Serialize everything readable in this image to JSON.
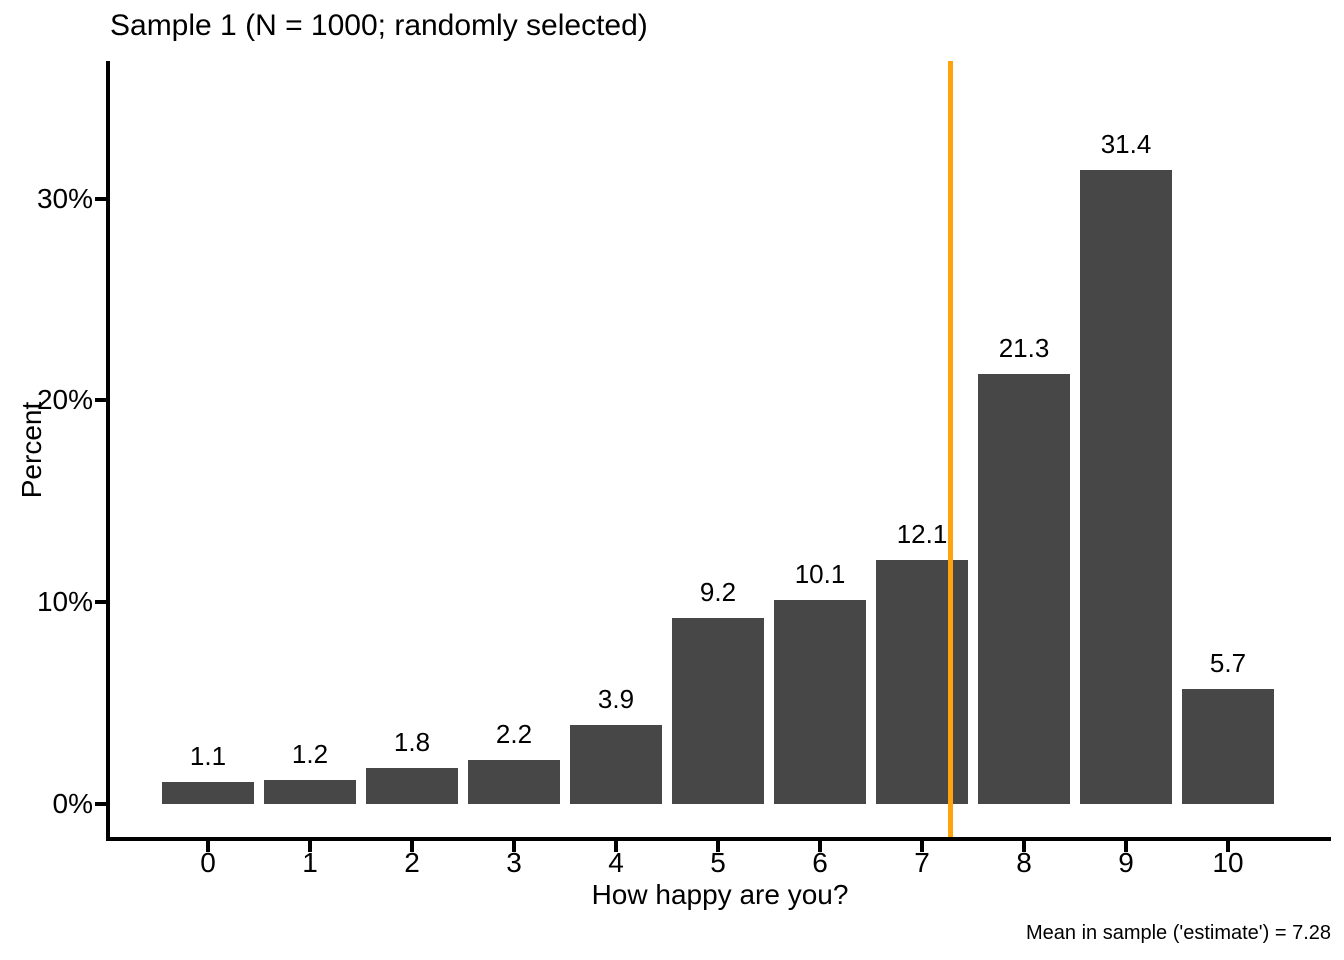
{
  "chart_data": {
    "type": "bar",
    "title": "Sample 1 (N = 1000; randomly selected)",
    "categories": [
      "0",
      "1",
      "2",
      "3",
      "4",
      "5",
      "6",
      "7",
      "8",
      "9",
      "10"
    ],
    "values": [
      1.1,
      1.2,
      1.8,
      2.2,
      3.9,
      9.2,
      10.1,
      12.1,
      21.3,
      31.4,
      5.7
    ],
    "bar_labels": [
      "1.1",
      "1.2",
      "1.8",
      "2.2",
      "3.9",
      "9.2",
      "10.1",
      "12.1",
      "21.3",
      "31.4",
      "5.7"
    ],
    "xlabel": "How happy are you?",
    "ylabel": "Percent",
    "y_ticks": [
      {
        "value": 0,
        "label": "0%"
      },
      {
        "value": 10,
        "label": "10%"
      },
      {
        "value": 20,
        "label": "20%"
      },
      {
        "value": 30,
        "label": "30%"
      }
    ],
    "ylim": [
      0,
      36.8
    ],
    "grid": false,
    "legend": false,
    "bar_color": "#474747",
    "mean_line": {
      "x": 7.28,
      "color": "#FFA40D",
      "label": "Mean in sample ('estimate') = 7.28"
    }
  }
}
